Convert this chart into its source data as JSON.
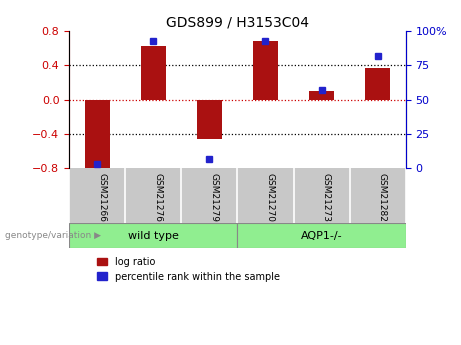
{
  "title": "GDS899 / H3153C04",
  "samples": [
    "GSM21266",
    "GSM21276",
    "GSM21279",
    "GSM21270",
    "GSM21273",
    "GSM21282"
  ],
  "log_ratio": [
    -0.83,
    0.62,
    -0.46,
    0.68,
    0.1,
    0.37
  ],
  "percentile_rank": [
    3,
    93,
    7,
    93,
    57,
    82
  ],
  "ylim_left": [
    -0.8,
    0.8
  ],
  "ylim_right": [
    0,
    100
  ],
  "bar_color_red": "#AA1111",
  "bar_color_blue": "#2222CC",
  "bg_color_ticks": "#C8C8C8",
  "zero_line_color": "#CC0000",
  "left_axis_color": "#CC0000",
  "right_axis_color": "#0000CC",
  "group_color": "#90EE90",
  "genotype_label": "genotype/variation",
  "legend_red": "log ratio",
  "legend_blue": "percentile rank within the sample",
  "group_info": [
    {
      "label": "wild type",
      "start": 0,
      "end": 3
    },
    {
      "label": "AQP1-/-",
      "start": 3,
      "end": 6
    }
  ]
}
